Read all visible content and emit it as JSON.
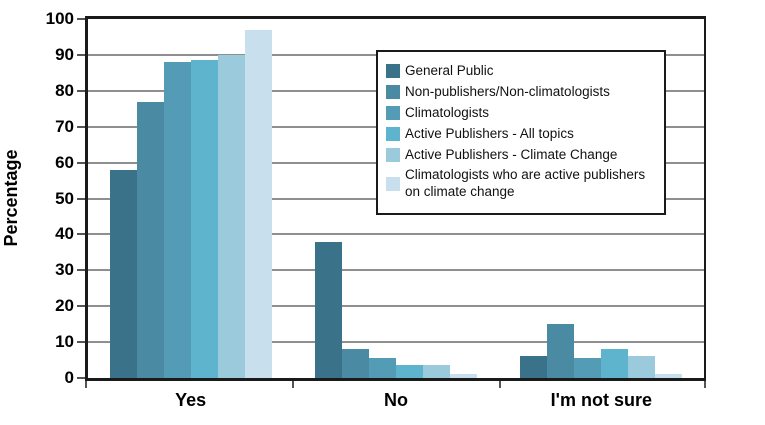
{
  "chart_data": {
    "type": "bar",
    "ylabel": "Percentage",
    "categories": [
      "Yes",
      "No",
      "I'm not sure"
    ],
    "series": [
      {
        "name": "General Public",
        "color": "#3a7389",
        "values": [
          58,
          38,
          6
        ]
      },
      {
        "name": "Non-publishers/Non-climatologists",
        "color": "#4a8ba3",
        "values": [
          77,
          8,
          15
        ]
      },
      {
        "name": "Climatologists",
        "color": "#549bb5",
        "values": [
          88,
          5.5,
          5.5
        ]
      },
      {
        "name": "Active Publishers - All topics",
        "color": "#5eb4cd",
        "values": [
          88.5,
          3.5,
          8
        ]
      },
      {
        "name": "Active Publishers - Climate Change",
        "color": "#9ccadd",
        "values": [
          90,
          3.5,
          6
        ]
      },
      {
        "name": "Climatologists who are active publishers on climate change",
        "color": "#c8e0ed",
        "values": [
          97,
          1,
          1
        ]
      }
    ],
    "ylim": [
      0,
      100
    ],
    "yticks": [
      0,
      10,
      20,
      30,
      40,
      50,
      60,
      70,
      80,
      90,
      100
    ],
    "grid": true,
    "legend_position": "upper-right-inside",
    "colors": {
      "grid": "#8f8f8f",
      "axis": "#1a1a1a",
      "background": "#ffffff"
    }
  }
}
